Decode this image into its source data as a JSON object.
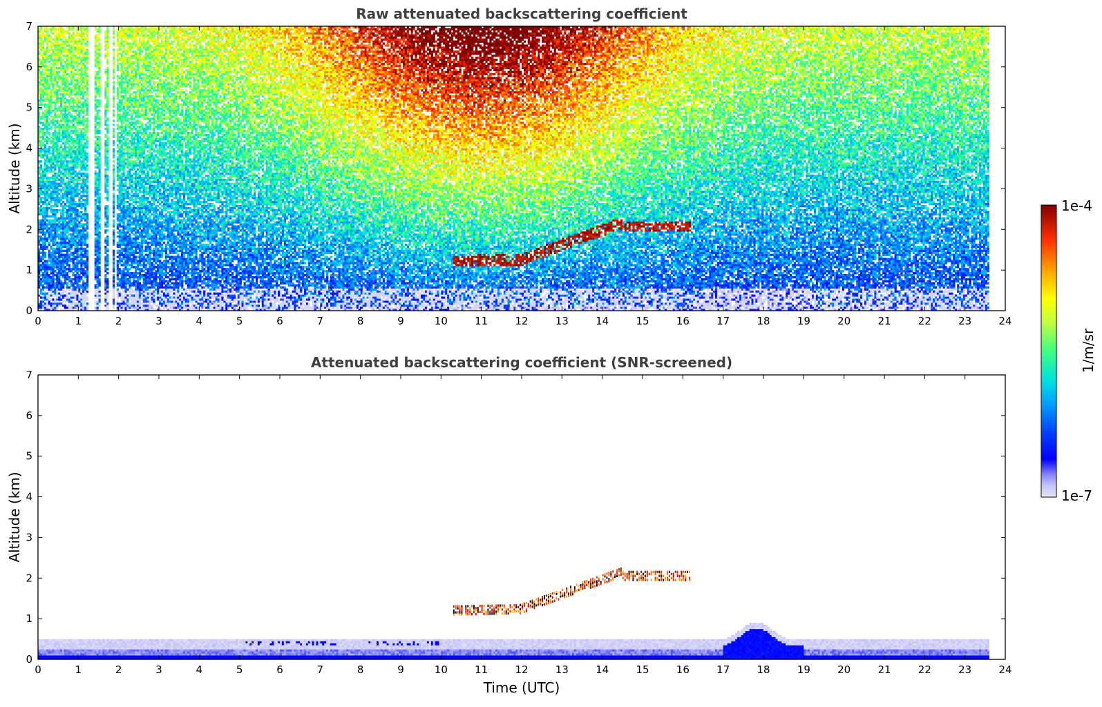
{
  "chart_data": [
    {
      "type": "heatmap",
      "title": "Raw attenuated backscattering coefficient",
      "xlabel": "",
      "ylabel": "Altitude (km)",
      "xlim": [
        0,
        24
      ],
      "ylim": [
        0,
        7
      ],
      "x_ticks": [
        0,
        1,
        2,
        3,
        4,
        5,
        6,
        7,
        8,
        9,
        10,
        11,
        12,
        13,
        14,
        15,
        16,
        17,
        18,
        19,
        20,
        21,
        22,
        23,
        24
      ],
      "y_ticks": [
        0,
        1,
        2,
        3,
        4,
        5,
        6,
        7
      ],
      "data_time_range": [
        0,
        23.6
      ],
      "missing_data_gaps": [
        [
          1.25,
          1.4
        ],
        [
          1.55,
          1.65
        ],
        [
          1.75,
          1.85
        ],
        [
          1.9,
          1.95
        ]
      ],
      "features": [
        {
          "kind": "cloud-layer",
          "time": [
            10.3,
            16.2
          ],
          "altitude_start": [
            1.2,
            2.0
          ],
          "altitude_mid": 1.5,
          "altitude_end": 2.0
        },
        {
          "kind": "near-surface-aerosol",
          "time": [
            17.0,
            19.2
          ],
          "altitude_top": 0.5
        }
      ],
      "grid": false
    },
    {
      "type": "heatmap",
      "title": "Attenuated backscattering coefficient (SNR-screened)",
      "xlabel": "Time (UTC)",
      "ylabel": "Altitude (km)",
      "xlim": [
        0,
        24
      ],
      "ylim": [
        0,
        7
      ],
      "x_ticks": [
        0,
        1,
        2,
        3,
        4,
        5,
        6,
        7,
        8,
        9,
        10,
        11,
        12,
        13,
        14,
        15,
        16,
        17,
        18,
        19,
        20,
        21,
        22,
        23,
        24
      ],
      "y_ticks": [
        0,
        1,
        2,
        3,
        4,
        5,
        6,
        7
      ],
      "data_time_range": [
        0,
        23.6
      ],
      "features": [
        {
          "kind": "cloud-layer",
          "time": [
            10.3,
            16.2
          ],
          "altitude_start": [
            1.1,
            2.1
          ]
        },
        {
          "kind": "boundary-layer",
          "time": [
            0,
            23.6
          ],
          "altitude_top": 0.45
        },
        {
          "kind": "aerosol-plume",
          "time": [
            17.0,
            19.0
          ],
          "altitude_top": 0.9
        }
      ],
      "grid": false
    }
  ],
  "colorbar": {
    "label": "1/m/sr",
    "max_label": "1e-4",
    "min_label": "1e-7",
    "scale": "log",
    "range": [
      1e-07,
      0.0001
    ],
    "colormap": "jet"
  }
}
